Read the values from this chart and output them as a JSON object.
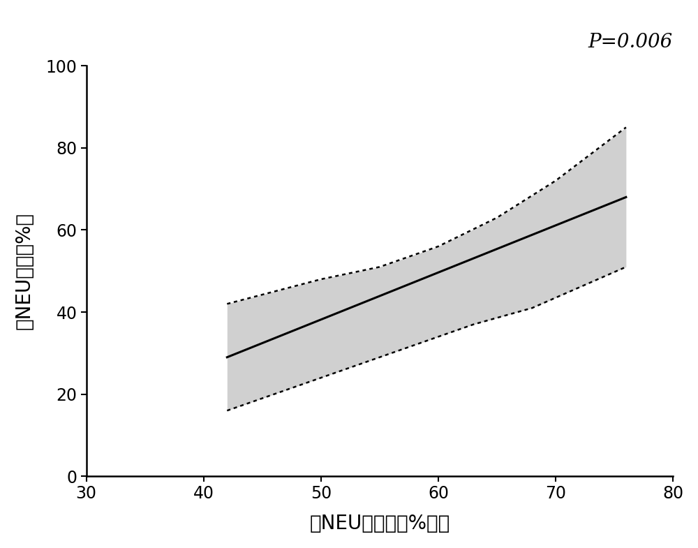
{
  "x_start": 42,
  "x_end": 76,
  "line_y_start": 29,
  "line_y_end": 68,
  "upper_ci_points": [
    [
      42,
      42
    ],
    [
      50,
      48
    ],
    [
      55,
      51
    ],
    [
      60,
      56
    ],
    [
      65,
      63
    ],
    [
      70,
      72
    ],
    [
      76,
      85
    ]
  ],
  "lower_ci_points": [
    [
      42,
      16
    ],
    [
      48,
      22
    ],
    [
      53,
      27
    ],
    [
      58,
      32
    ],
    [
      63,
      37
    ],
    [
      68,
      41
    ],
    [
      76,
      51
    ]
  ],
  "xlim": [
    30,
    80
  ],
  "ylim": [
    0,
    100
  ],
  "xticks": [
    30,
    40,
    50,
    60,
    70,
    80
  ],
  "yticks": [
    0,
    20,
    40,
    60,
    80,
    100
  ],
  "xlabel": "血NEU比例（　%　）",
  "ylabel": "痰NEU比例（%）",
  "p_text": "P=0.006",
  "line_color": "#000000",
  "ci_fill_color": "#d0d0d0",
  "ci_line_color": "#000000",
  "background_color": "#ffffff"
}
